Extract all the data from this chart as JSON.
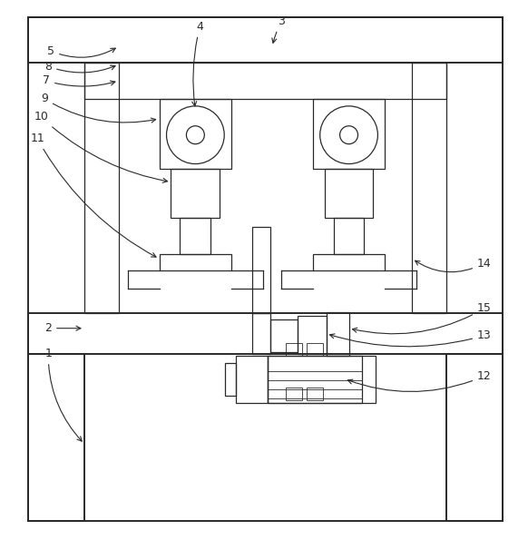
{
  "figure_width": 5.82,
  "figure_height": 5.95,
  "bg_color": "#ffffff",
  "line_color": "#2a2a2a",
  "lw_main": 1.4,
  "lw_thin": 0.9,
  "lw_xtra": 0.6
}
